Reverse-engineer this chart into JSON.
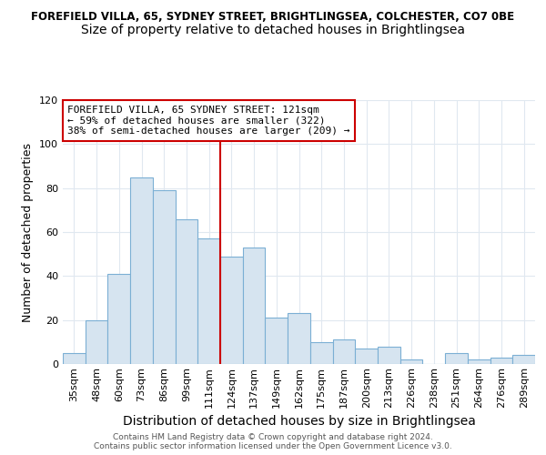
{
  "title1": "FOREFIELD VILLA, 65, SYDNEY STREET, BRIGHTLINGSEA, COLCHESTER, CO7 0BE",
  "title2": "Size of property relative to detached houses in Brightlingsea",
  "xlabel": "Distribution of detached houses by size in Brightlingsea",
  "ylabel": "Number of detached properties",
  "footer": "Contains HM Land Registry data © Crown copyright and database right 2024.\nContains public sector information licensed under the Open Government Licence v3.0.",
  "categories": [
    "35sqm",
    "48sqm",
    "60sqm",
    "73sqm",
    "86sqm",
    "99sqm",
    "111sqm",
    "124sqm",
    "137sqm",
    "149sqm",
    "162sqm",
    "175sqm",
    "187sqm",
    "200sqm",
    "213sqm",
    "226sqm",
    "238sqm",
    "251sqm",
    "264sqm",
    "276sqm",
    "289sqm"
  ],
  "values": [
    5,
    20,
    41,
    85,
    79,
    66,
    57,
    49,
    53,
    21,
    23,
    10,
    11,
    7,
    8,
    2,
    0,
    5,
    2,
    3,
    4
  ],
  "bar_color": "#d6e4f0",
  "bar_edge_color": "#7bafd4",
  "subject_line_color": "#cc0000",
  "subject_line_index": 7,
  "annotation_line1": "FOREFIELD VILLA, 65 SYDNEY STREET: 121sqm",
  "annotation_line2": "← 59% of detached houses are smaller (322)",
  "annotation_line3": "38% of semi-detached houses are larger (209) →",
  "annotation_box_color": "#ffffff",
  "annotation_border_color": "#cc0000",
  "ylim": [
    0,
    120
  ],
  "yticks": [
    0,
    20,
    40,
    60,
    80,
    100,
    120
  ],
  "background_color": "#ffffff",
  "plot_bg_color": "#ffffff",
  "grid_color": "#e0e8f0",
  "title1_fontsize": 8.5,
  "title2_fontsize": 10,
  "xlabel_fontsize": 10,
  "ylabel_fontsize": 9,
  "annotation_fontsize": 8,
  "tick_fontsize": 8
}
